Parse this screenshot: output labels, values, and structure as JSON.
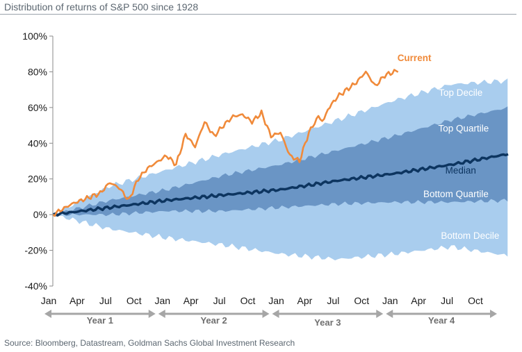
{
  "title": "Distribution of returns of S&P 500 since 1928",
  "source": "Source: Bloomberg, Datastream, Goldman Sachs Global Investment Research",
  "colors": {
    "outer_band": "#a9cdee",
    "inner_band": "#6a95c5",
    "median": "#0d3560",
    "current": "#f08a3a",
    "arrow": "#a6a6a6"
  },
  "chart_data": {
    "type": "area",
    "xlabel": "",
    "ylabel": "",
    "ylim": [
      -40,
      100
    ],
    "y_ticks": [
      "100%",
      "80%",
      "60%",
      "40%",
      "20%",
      "0%",
      "-20%",
      "-40%"
    ],
    "x_tick_labels": [
      "Jan",
      "Apr",
      "Jul",
      "Oct",
      "Jan",
      "Apr",
      "Jul",
      "Oct",
      "Jan",
      "Apr",
      "Jul",
      "Oct",
      "Jan",
      "Apr",
      "Jul",
      "Oct"
    ],
    "year_labels": [
      "Year 1",
      "Year 2",
      "Year 3",
      "Year 4"
    ],
    "x_months": [
      0,
      6,
      12,
      18,
      24,
      30,
      36,
      42,
      48
    ],
    "series": [
      {
        "name": "Top Decile",
        "values": [
          0,
          16,
          25,
          34,
          42,
          53,
          64,
          73,
          75
        ]
      },
      {
        "name": "Top Quartile",
        "values": [
          0,
          8,
          14,
          22,
          28,
          36,
          44,
          53,
          60
        ]
      },
      {
        "name": "Median",
        "values": [
          0,
          4,
          8,
          11,
          14,
          19,
          23,
          28,
          34
        ]
      },
      {
        "name": "Bottom Quartile",
        "values": [
          0,
          0,
          2,
          2,
          4,
          6,
          7,
          7,
          8
        ]
      },
      {
        "name": "Bottom Decile",
        "values": [
          0,
          -8,
          -13,
          -17,
          -22,
          -25,
          -22,
          -18,
          -23
        ]
      },
      {
        "name": "Current",
        "label": "Current",
        "x": [
          0,
          2,
          3,
          5,
          6,
          7,
          8,
          9,
          10,
          12,
          13,
          14,
          15,
          16,
          17,
          18,
          19,
          20,
          21,
          22,
          23,
          24,
          25,
          26,
          27,
          28,
          28.5,
          29,
          30,
          32,
          33,
          34,
          35,
          36,
          36.5
        ],
        "values": [
          0,
          6,
          8,
          12,
          18,
          15,
          8,
          20,
          26,
          33,
          28,
          45,
          38,
          52,
          44,
          50,
          55,
          56,
          52,
          57,
          44,
          46,
          33,
          30,
          46,
          55,
          52,
          59,
          66,
          74,
          80,
          72,
          78,
          80,
          81
        ]
      }
    ]
  }
}
